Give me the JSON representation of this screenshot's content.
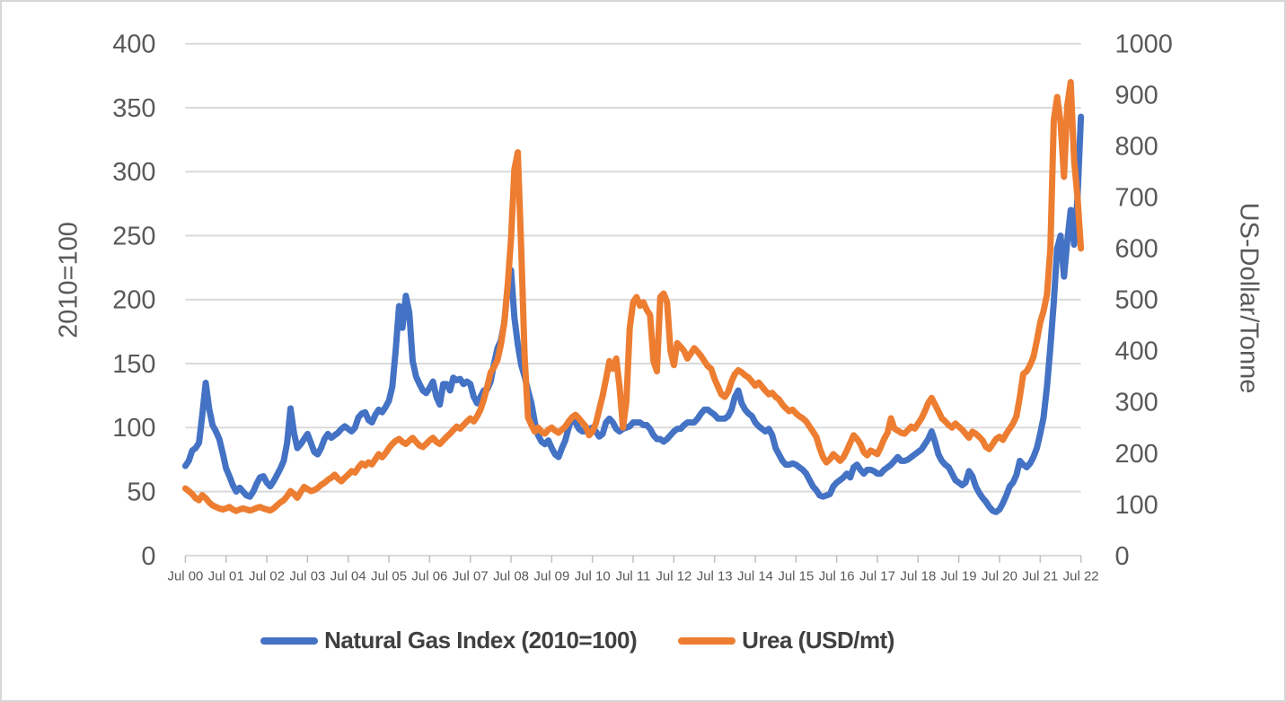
{
  "chart_data": {
    "type": "line",
    "grid": true,
    "legend_position": "bottom",
    "left_axis": {
      "title": "2010=100",
      "min": 0,
      "max": 400,
      "step": 50,
      "tick_labels": [
        "0",
        "50",
        "100",
        "150",
        "200",
        "250",
        "300",
        "350",
        "400"
      ]
    },
    "right_axis": {
      "title": "US-Dollar/Tonne",
      "min": 0,
      "max": 1000,
      "step": 100,
      "tick_labels": [
        "0",
        "100",
        "200",
        "300",
        "400",
        "500",
        "600",
        "700",
        "800",
        "900",
        "1000"
      ]
    },
    "x_axis": {
      "tick_labels": [
        "Jul 00",
        "Jul 01",
        "Jul 02",
        "Jul 03",
        "Jul 04",
        "Jul 05",
        "Jul 06",
        "Jul 07",
        "Jul 08",
        "Jul 09",
        "Jul 10",
        "Jul 11",
        "Jul 12",
        "Jul 13",
        "Jul 14",
        "Jul 15",
        "Jul 16",
        "Jul 17",
        "Jul 18",
        "Jul 19",
        "Jul 20",
        "Jul 21",
        "Jul 22"
      ],
      "frequency": "monthly"
    },
    "series": [
      {
        "name": "Natural Gas Index (2010=100)",
        "axis": "left",
        "color": "#4472C4",
        "values_by_year": [
          [
            70,
            74,
            82,
            84,
            88,
            110
          ],
          [
            135,
            115,
            102,
            97,
            91,
            80,
            68,
            62,
            55,
            50,
            53,
            50
          ],
          [
            47,
            46,
            50,
            56,
            61,
            62,
            57,
            54,
            58,
            63,
            68,
            74
          ],
          [
            88,
            115,
            96,
            84,
            87,
            91,
            95,
            88,
            81,
            79,
            84,
            91
          ],
          [
            95,
            92,
            94,
            96,
            99,
            101,
            99,
            97,
            100,
            108,
            111,
            112
          ],
          [
            106,
            104,
            110,
            114,
            112,
            116,
            121,
            132,
            160,
            195,
            178,
            203
          ],
          [
            190,
            152,
            140,
            134,
            129,
            127,
            131,
            136,
            124,
            118,
            134,
            134
          ],
          [
            129,
            139,
            137,
            138,
            134,
            136,
            134,
            124,
            119,
            124,
            129,
            130
          ],
          [
            136,
            150,
            162,
            168,
            182,
            210,
            223,
            186,
            165,
            149,
            140,
            129
          ],
          [
            119,
            104,
            94,
            89,
            87,
            90,
            84,
            79,
            77,
            84,
            90,
            100
          ],
          [
            108,
            104,
            99,
            97,
            97,
            99,
            100,
            97,
            93,
            95,
            104,
            107
          ],
          [
            104,
            99,
            97,
            99,
            100,
            101,
            104,
            104,
            104,
            102,
            102,
            99
          ],
          [
            94,
            91,
            91,
            89,
            91,
            94,
            97,
            99,
            99,
            102,
            104,
            104
          ],
          [
            104,
            107,
            111,
            114,
            114,
            112,
            110,
            107,
            107,
            107,
            109,
            114
          ],
          [
            124,
            129,
            119,
            114,
            111,
            109,
            104,
            101,
            99,
            97,
            99,
            94
          ],
          [
            84,
            79,
            74,
            71,
            71,
            72,
            71,
            69,
            67,
            64,
            59,
            54
          ],
          [
            51,
            47,
            46,
            47,
            48,
            54,
            57,
            59,
            61,
            64,
            61,
            69
          ],
          [
            71,
            67,
            64,
            67,
            67,
            66,
            64,
            64,
            67,
            69,
            71,
            74
          ],
          [
            77,
            74,
            74,
            75,
            77,
            79,
            81,
            83,
            87,
            91,
            97,
            89
          ],
          [
            79,
            74,
            71,
            69,
            64,
            59,
            57,
            55,
            57,
            66,
            62,
            54
          ],
          [
            49,
            45,
            42,
            38,
            35,
            34,
            36,
            41,
            47,
            54,
            57,
            63
          ],
          [
            74,
            71,
            69,
            72,
            77,
            84,
            95,
            108,
            132,
            163,
            198,
            240
          ],
          [
            250,
            218,
            246,
            270,
            243,
            280,
            343
          ]
        ]
      },
      {
        "name": "Urea (USD/mt)",
        "axis": "right",
        "color": "#ED7D31",
        "values_by_year": [
          [
            131,
            126,
            120,
            112,
            108,
            118
          ],
          [
            112,
            104,
            98,
            95,
            92,
            90,
            92,
            95,
            90,
            87,
            90,
            92
          ],
          [
            90,
            88,
            90,
            93,
            95,
            92,
            90,
            88,
            92,
            98,
            104,
            108
          ],
          [
            116,
            126,
            120,
            113,
            124,
            134,
            130,
            126,
            128,
            132,
            138,
            142
          ],
          [
            148,
            152,
            158,
            150,
            145,
            152,
            158,
            165,
            162,
            172,
            180,
            176
          ],
          [
            182,
            178,
            188,
            198,
            192,
            200,
            210,
            218,
            224,
            228,
            222,
            218
          ],
          [
            224,
            230,
            222,
            215,
            212,
            218,
            225,
            230,
            222,
            218,
            225,
            232
          ],
          [
            238,
            245,
            252,
            248,
            255,
            262,
            268,
            262,
            272,
            285,
            305,
            330
          ],
          [
            358,
            368,
            382,
            412,
            455,
            525,
            618,
            755,
            788,
            600,
            390,
            270
          ],
          [
            255,
            242,
            250,
            242,
            238,
            246,
            250,
            244,
            240,
            246,
            252,
            262
          ],
          [
            270,
            275,
            268,
            260,
            252,
            235,
            242,
            258,
            285,
            312,
            345,
            380
          ],
          [
            365,
            385,
            330,
            250,
            300,
            445,
            495,
            505,
            488,
            495,
            480,
            470
          ],
          [
            380,
            360,
            505,
            512,
            495,
            400,
            372,
            415,
            408,
            400,
            385,
            395
          ],
          [
            405,
            398,
            390,
            380,
            370,
            365,
            345,
            330,
            315,
            310,
            320,
            340
          ],
          [
            355,
            362,
            358,
            352,
            348,
            340,
            332,
            338,
            330,
            322,
            315,
            318
          ],
          [
            310,
            305,
            295,
            288,
            282,
            285,
            278,
            272,
            268,
            262,
            252,
            242
          ],
          [
            232,
            210,
            192,
            182,
            188,
            198,
            192,
            185,
            192,
            205,
            220,
            235
          ],
          [
            228,
            218,
            202,
            196,
            205,
            202,
            198,
            212,
            228,
            240,
            268,
            248
          ],
          [
            244,
            240,
            238,
            245,
            252,
            248,
            258,
            268,
            282,
            298,
            308,
            295
          ],
          [
            282,
            268,
            262,
            255,
            250,
            258,
            252,
            246,
            238,
            230,
            242,
            238
          ],
          [
            232,
            225,
            212,
            208,
            218,
            228,
            232,
            226,
            238,
            248,
            258,
            272
          ],
          [
            310,
            355,
            360,
            372,
            388,
            420,
            455,
            478,
            510,
            600,
            850,
            896
          ],
          [
            846,
            740,
            880,
            925,
            772,
            700,
            600
          ]
        ]
      }
    ],
    "colors": {
      "gridline": "#D9D9D9",
      "axis_line": "#BFBFBF",
      "tick_text": "#595959",
      "legend_text": "#404040"
    }
  }
}
